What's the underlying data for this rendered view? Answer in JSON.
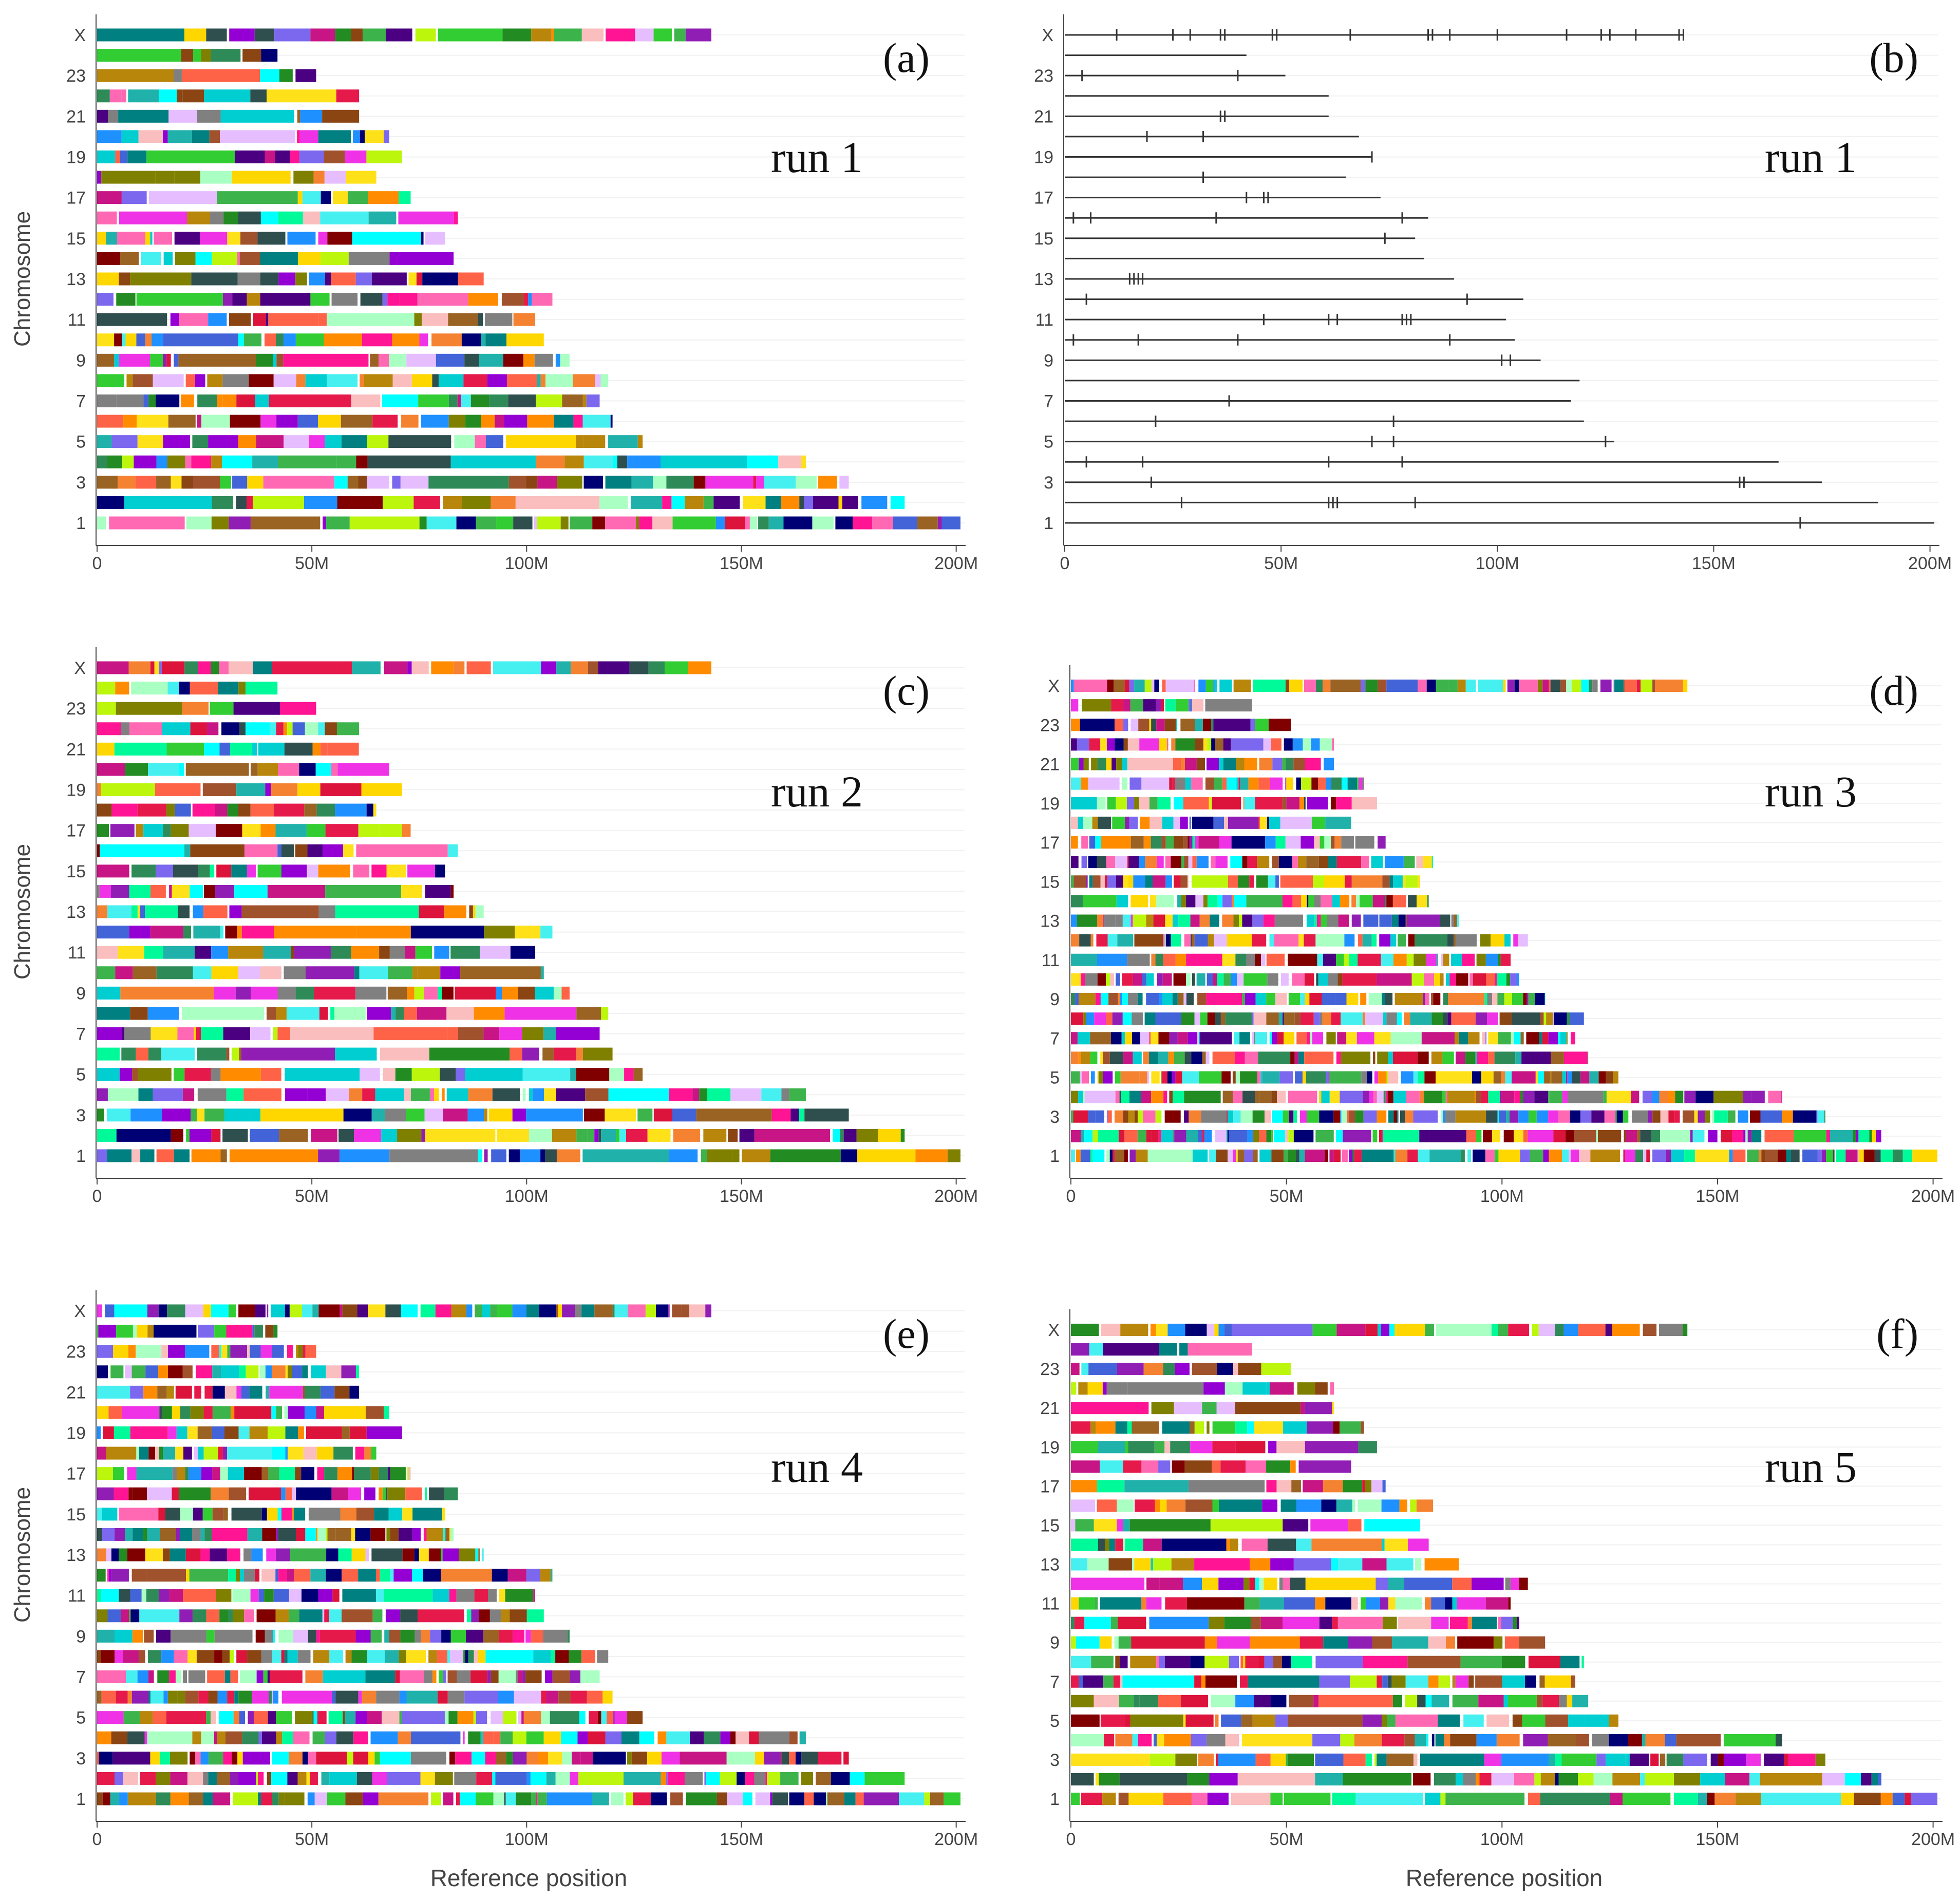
{
  "figure": {
    "y_axis_label": "Chromosome",
    "x_axis_label": "Reference position",
    "panel_colors": [
      "#e6194b",
      "#3cb44b",
      "#ffe119",
      "#4363d8",
      "#f58231",
      "#911eb4",
      "#46f0f0",
      "#f032e6",
      "#bcf60c",
      "#fabebe",
      "#008080",
      "#e6beff",
      "#9a6324",
      "#800000",
      "#aaffc3",
      "#808000",
      "#000075",
      "#808080",
      "#00ffff",
      "#ff1493",
      "#00ced1",
      "#ff8c00",
      "#7b68ee",
      "#2e8b57",
      "#b8860b",
      "#dc143c",
      "#1e90ff",
      "#32cd32",
      "#ff69b4",
      "#8b4513",
      "#00fa9a",
      "#c71585",
      "#4b0082",
      "#ffd700",
      "#228b22",
      "#ff6347",
      "#9400d3",
      "#20b2aa",
      "#a0522d",
      "#2f4f4f"
    ],
    "mark_color": "#333333"
  },
  "chart_data": [
    {
      "type": "bar",
      "panel": "(a)",
      "run": "run 1",
      "style": "colored-segments",
      "categories": [
        "1",
        "2",
        "3",
        "4",
        "5",
        "6",
        "7",
        "8",
        "9",
        "10",
        "11",
        "12",
        "13",
        "14",
        "15",
        "16",
        "17",
        "18",
        "19",
        "20",
        "21",
        "22",
        "23",
        "24",
        "X"
      ],
      "ytick_labels": [
        "1",
        "3",
        "5",
        "7",
        "9",
        "11",
        "13",
        "15",
        "17",
        "19",
        "21",
        "23",
        "X"
      ],
      "values_mb": [
        201,
        188,
        175,
        165,
        127,
        120,
        117,
        119,
        110,
        104,
        102,
        106,
        90,
        83,
        81,
        84,
        73,
        65,
        71,
        68,
        61,
        61,
        51,
        42,
        143
      ],
      "xlim": [
        0,
        201
      ],
      "xtick_labels": [
        "0",
        "50M",
        "100M",
        "150M",
        "200M"
      ],
      "xlabel": "",
      "ylabel": "Chromosome",
      "seed": 11,
      "segments_per_mb": 0.32
    },
    {
      "type": "bar",
      "panel": "(b)",
      "run": "run 1",
      "style": "lines-with-ticks",
      "categories": [
        "1",
        "2",
        "3",
        "4",
        "5",
        "6",
        "7",
        "8",
        "9",
        "10",
        "11",
        "12",
        "13",
        "14",
        "15",
        "16",
        "17",
        "18",
        "19",
        "20",
        "21",
        "22",
        "23",
        "24",
        "X"
      ],
      "ytick_labels": [
        "1",
        "3",
        "5",
        "7",
        "9",
        "11",
        "13",
        "15",
        "17",
        "19",
        "21",
        "23",
        "X"
      ],
      "values_mb": [
        201,
        188,
        175,
        165,
        127,
        120,
        117,
        119,
        110,
        104,
        102,
        106,
        90,
        83,
        81,
        84,
        73,
        65,
        71,
        68,
        61,
        61,
        51,
        42,
        143
      ],
      "xlim": [
        0,
        201
      ],
      "xtick_labels": [
        "0",
        "50M",
        "100M",
        "150M",
        "200M"
      ],
      "xlabel": "",
      "ylabel": "",
      "ticks_mb": [
        [
          170
        ],
        [
          27,
          61,
          62,
          63,
          81
        ],
        [
          20,
          156,
          157
        ],
        [
          5,
          18,
          61,
          78
        ],
        [
          71,
          76,
          125
        ],
        [
          21,
          76
        ],
        [
          38
        ],
        [],
        [
          101,
          103
        ],
        [
          2,
          17,
          40,
          89
        ],
        [
          46,
          61,
          63,
          78,
          79,
          80
        ],
        [
          5,
          93
        ],
        [
          15,
          16,
          17,
          18
        ],
        [],
        [
          74
        ],
        [
          2,
          6,
          35,
          78
        ],
        [
          42,
          46,
          47
        ],
        [
          32
        ],
        [
          71
        ],
        [
          19,
          32
        ],
        [
          36,
          37
        ],
        [],
        [
          4,
          40
        ],
        [],
        [
          12,
          25,
          29,
          36,
          37,
          48,
          49,
          66,
          84,
          85,
          89,
          100,
          116,
          124,
          126,
          132,
          142,
          143
        ]
      ]
    },
    {
      "type": "bar",
      "panel": "(c)",
      "run": "run 2",
      "style": "colored-segments",
      "categories": [
        "1",
        "2",
        "3",
        "4",
        "5",
        "6",
        "7",
        "8",
        "9",
        "10",
        "11",
        "12",
        "13",
        "14",
        "15",
        "16",
        "17",
        "18",
        "19",
        "20",
        "21",
        "22",
        "23",
        "24",
        "X"
      ],
      "ytick_labels": [
        "1",
        "3",
        "5",
        "7",
        "9",
        "11",
        "13",
        "15",
        "17",
        "19",
        "21",
        "23",
        "X"
      ],
      "values_mb": [
        201,
        188,
        175,
        165,
        127,
        120,
        117,
        119,
        110,
        104,
        102,
        106,
        90,
        83,
        81,
        84,
        73,
        65,
        71,
        68,
        61,
        61,
        51,
        42,
        143
      ],
      "xlim": [
        0,
        201
      ],
      "xtick_labels": [
        "0",
        "50M",
        "100M",
        "150M",
        "200M"
      ],
      "xlabel": "",
      "ylabel": "Chromosome",
      "seed": 23,
      "segments_per_mb": 0.3
    },
    {
      "type": "bar",
      "panel": "(d)",
      "run": "run 3",
      "style": "colored-segments",
      "categories": [
        "1",
        "2",
        "3",
        "4",
        "5",
        "6",
        "7",
        "8",
        "9",
        "10",
        "11",
        "12",
        "13",
        "14",
        "15",
        "16",
        "17",
        "18",
        "19",
        "20",
        "21",
        "22",
        "23",
        "24",
        "X"
      ],
      "ytick_labels": [
        "1",
        "3",
        "5",
        "7",
        "9",
        "11",
        "13",
        "15",
        "17",
        "19",
        "21",
        "23",
        "X"
      ],
      "values_mb": [
        201,
        188,
        175,
        165,
        127,
        120,
        117,
        119,
        110,
        104,
        102,
        106,
        90,
        83,
        81,
        84,
        73,
        65,
        71,
        68,
        61,
        61,
        51,
        42,
        143
      ],
      "xlim": [
        0,
        201
      ],
      "xtick_labels": [
        "0",
        "50M",
        "100M",
        "150M",
        "200M"
      ],
      "xlabel": "",
      "ylabel": "",
      "seed": 37,
      "segments_per_mb": 0.75
    },
    {
      "type": "bar",
      "panel": "(e)",
      "run": "run 4",
      "style": "colored-segments",
      "categories": [
        "1",
        "2",
        "3",
        "4",
        "5",
        "6",
        "7",
        "8",
        "9",
        "10",
        "11",
        "12",
        "13",
        "14",
        "15",
        "16",
        "17",
        "18",
        "19",
        "20",
        "21",
        "22",
        "23",
        "24",
        "X"
      ],
      "ytick_labels": [
        "1",
        "3",
        "5",
        "7",
        "9",
        "11",
        "13",
        "15",
        "17",
        "19",
        "21",
        "23",
        "X"
      ],
      "values_mb": [
        201,
        188,
        175,
        165,
        127,
        120,
        117,
        119,
        110,
        104,
        102,
        106,
        90,
        83,
        81,
        84,
        73,
        65,
        71,
        68,
        61,
        61,
        51,
        42,
        143
      ],
      "xlim": [
        0,
        201
      ],
      "xtick_labels": [
        "0",
        "50M",
        "100M",
        "150M",
        "200M"
      ],
      "xlabel": "Reference position",
      "ylabel": "Chromosome",
      "seed": 51,
      "segments_per_mb": 0.55
    },
    {
      "type": "bar",
      "panel": "(f)",
      "run": "run 5",
      "style": "colored-segments",
      "categories": [
        "1",
        "2",
        "3",
        "4",
        "5",
        "6",
        "7",
        "8",
        "9",
        "10",
        "11",
        "12",
        "13",
        "14",
        "15",
        "16",
        "17",
        "18",
        "19",
        "20",
        "21",
        "22",
        "23",
        "24",
        "X"
      ],
      "ytick_labels": [
        "1",
        "3",
        "5",
        "7",
        "9",
        "11",
        "13",
        "15",
        "17",
        "19",
        "21",
        "23",
        "X"
      ],
      "values_mb": [
        201,
        188,
        175,
        165,
        127,
        120,
        117,
        119,
        110,
        104,
        102,
        106,
        90,
        83,
        81,
        84,
        73,
        65,
        71,
        68,
        61,
        61,
        51,
        42,
        143
      ],
      "xlim": [
        0,
        201
      ],
      "xtick_labels": [
        "0",
        "50M",
        "100M",
        "150M",
        "200M"
      ],
      "xlabel": "Reference position",
      "ylabel": "",
      "seed": 67,
      "segments_per_mb": 0.35
    }
  ]
}
